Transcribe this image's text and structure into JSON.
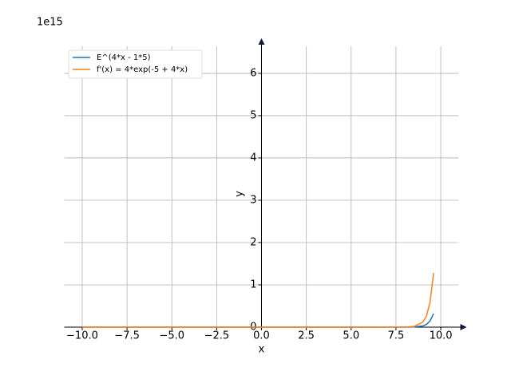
{
  "chart_data": {
    "type": "line",
    "x_label": "x",
    "y_label": "y",
    "y_offset_label": "1e15",
    "x": [
      -10,
      -5,
      0,
      5,
      8,
      8.5,
      9,
      9.2,
      9.4,
      9.6
    ],
    "series": [
      {
        "name": "E^(4*x - 1*5)",
        "color": "#1f77b4",
        "values": [
          0,
          0,
          0,
          0,
          0.0005,
          0.004,
          0.029,
          0.065,
          0.144,
          0.32
        ]
      },
      {
        "name": "f'(x) = 4*exp(-5 + 4*x)",
        "color": "#ff7f0e",
        "values": [
          0,
          0,
          0,
          0,
          0.002,
          0.016,
          0.116,
          0.26,
          0.58,
          1.28
        ]
      }
    ],
    "xlim": [
      -11,
      11
    ],
    "ylim": [
      0,
      6.64
    ],
    "xticks": [
      {
        "value": -10,
        "label": "−10.0"
      },
      {
        "value": -7.5,
        "label": "−7.5"
      },
      {
        "value": -5,
        "label": "−5.0"
      },
      {
        "value": -2.5,
        "label": "−2.5"
      },
      {
        "value": 0,
        "label": "0.0"
      },
      {
        "value": 2.5,
        "label": "2.5"
      },
      {
        "value": 5,
        "label": "5.0"
      },
      {
        "value": 7.5,
        "label": "7.5"
      },
      {
        "value": 10,
        "label": "10.0"
      }
    ],
    "yticks": [
      0,
      1,
      2,
      3,
      4,
      5,
      6
    ],
    "grid": true,
    "legend": "upper left"
  }
}
